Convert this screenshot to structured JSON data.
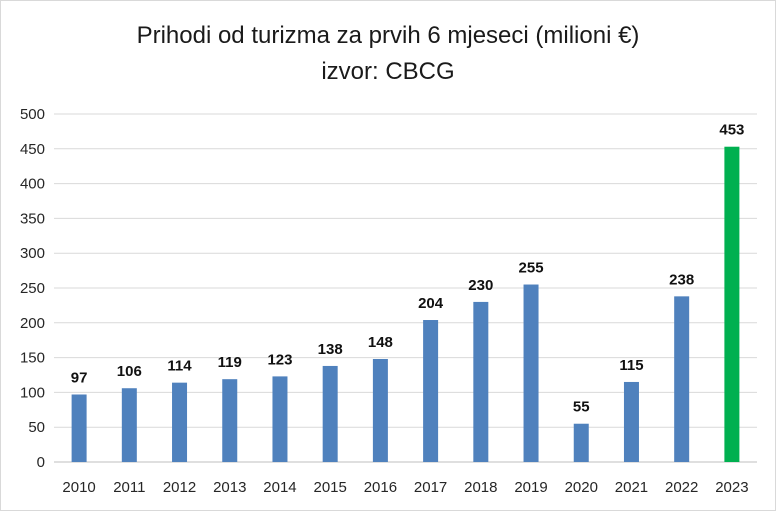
{
  "chart_data": {
    "type": "bar",
    "title": "Prihodi od turizma za prvih 6 mjeseci (milioni €)",
    "subtitle": "izvor: CBCG",
    "xlabel": "",
    "ylabel": "",
    "categories": [
      "2010",
      "2011",
      "2012",
      "2013",
      "2014",
      "2015",
      "2016",
      "2017",
      "2018",
      "2019",
      "2020",
      "2021",
      "2022",
      "2023"
    ],
    "values": [
      97,
      106,
      114,
      119,
      123,
      138,
      148,
      204,
      230,
      255,
      55,
      115,
      238,
      453
    ],
    "data_labels": [
      "97",
      "106",
      "114",
      "119",
      "123",
      "138",
      "148",
      "204",
      "230",
      "255",
      "55",
      "115",
      "238",
      "453"
    ],
    "ylim": [
      0,
      500
    ],
    "yticks": [
      0,
      50,
      100,
      150,
      200,
      250,
      300,
      350,
      400,
      450,
      500
    ],
    "grid": true,
    "legend": "none",
    "colors": {
      "bar": "#4f81bd",
      "highlight_bar": "#00b050",
      "grid": "#d9d9d9",
      "axis": "#bfbfbf"
    },
    "highlight_category": "2023"
  }
}
